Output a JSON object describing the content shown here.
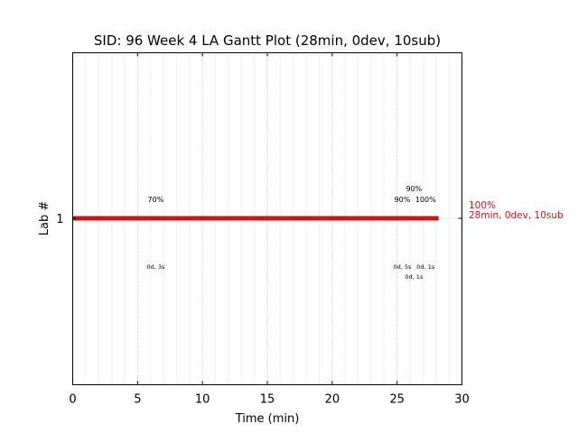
{
  "chart_data": {
    "type": "gantt",
    "title": "SID: 96 Week 4 LA Gantt Plot (28min, 0dev, 10sub)",
    "xlabel": "Time (min)",
    "ylabel": "Lab #",
    "xlim": [
      0,
      30
    ],
    "xticks": [
      0,
      5,
      10,
      15,
      20,
      25,
      30
    ],
    "yticks": [
      "1"
    ],
    "grid": true,
    "bars": [
      {
        "lab": "1",
        "start": 0,
        "end": 28.2,
        "color": "#c0181b",
        "end_label_pct": "100%",
        "end_label_summary": "28min, 0dev, 10sub"
      }
    ],
    "annotations": [
      {
        "x": 6.4,
        "top": "70%",
        "bottom": "0d, 3s"
      },
      {
        "x": 25.4,
        "top": "90%",
        "bottom": "0d, 5s"
      },
      {
        "x": 26.3,
        "top": "90%",
        "bottom": "0d, 1s"
      },
      {
        "x": 27.2,
        "top": "100%",
        "bottom": "0d, 1s"
      }
    ]
  }
}
